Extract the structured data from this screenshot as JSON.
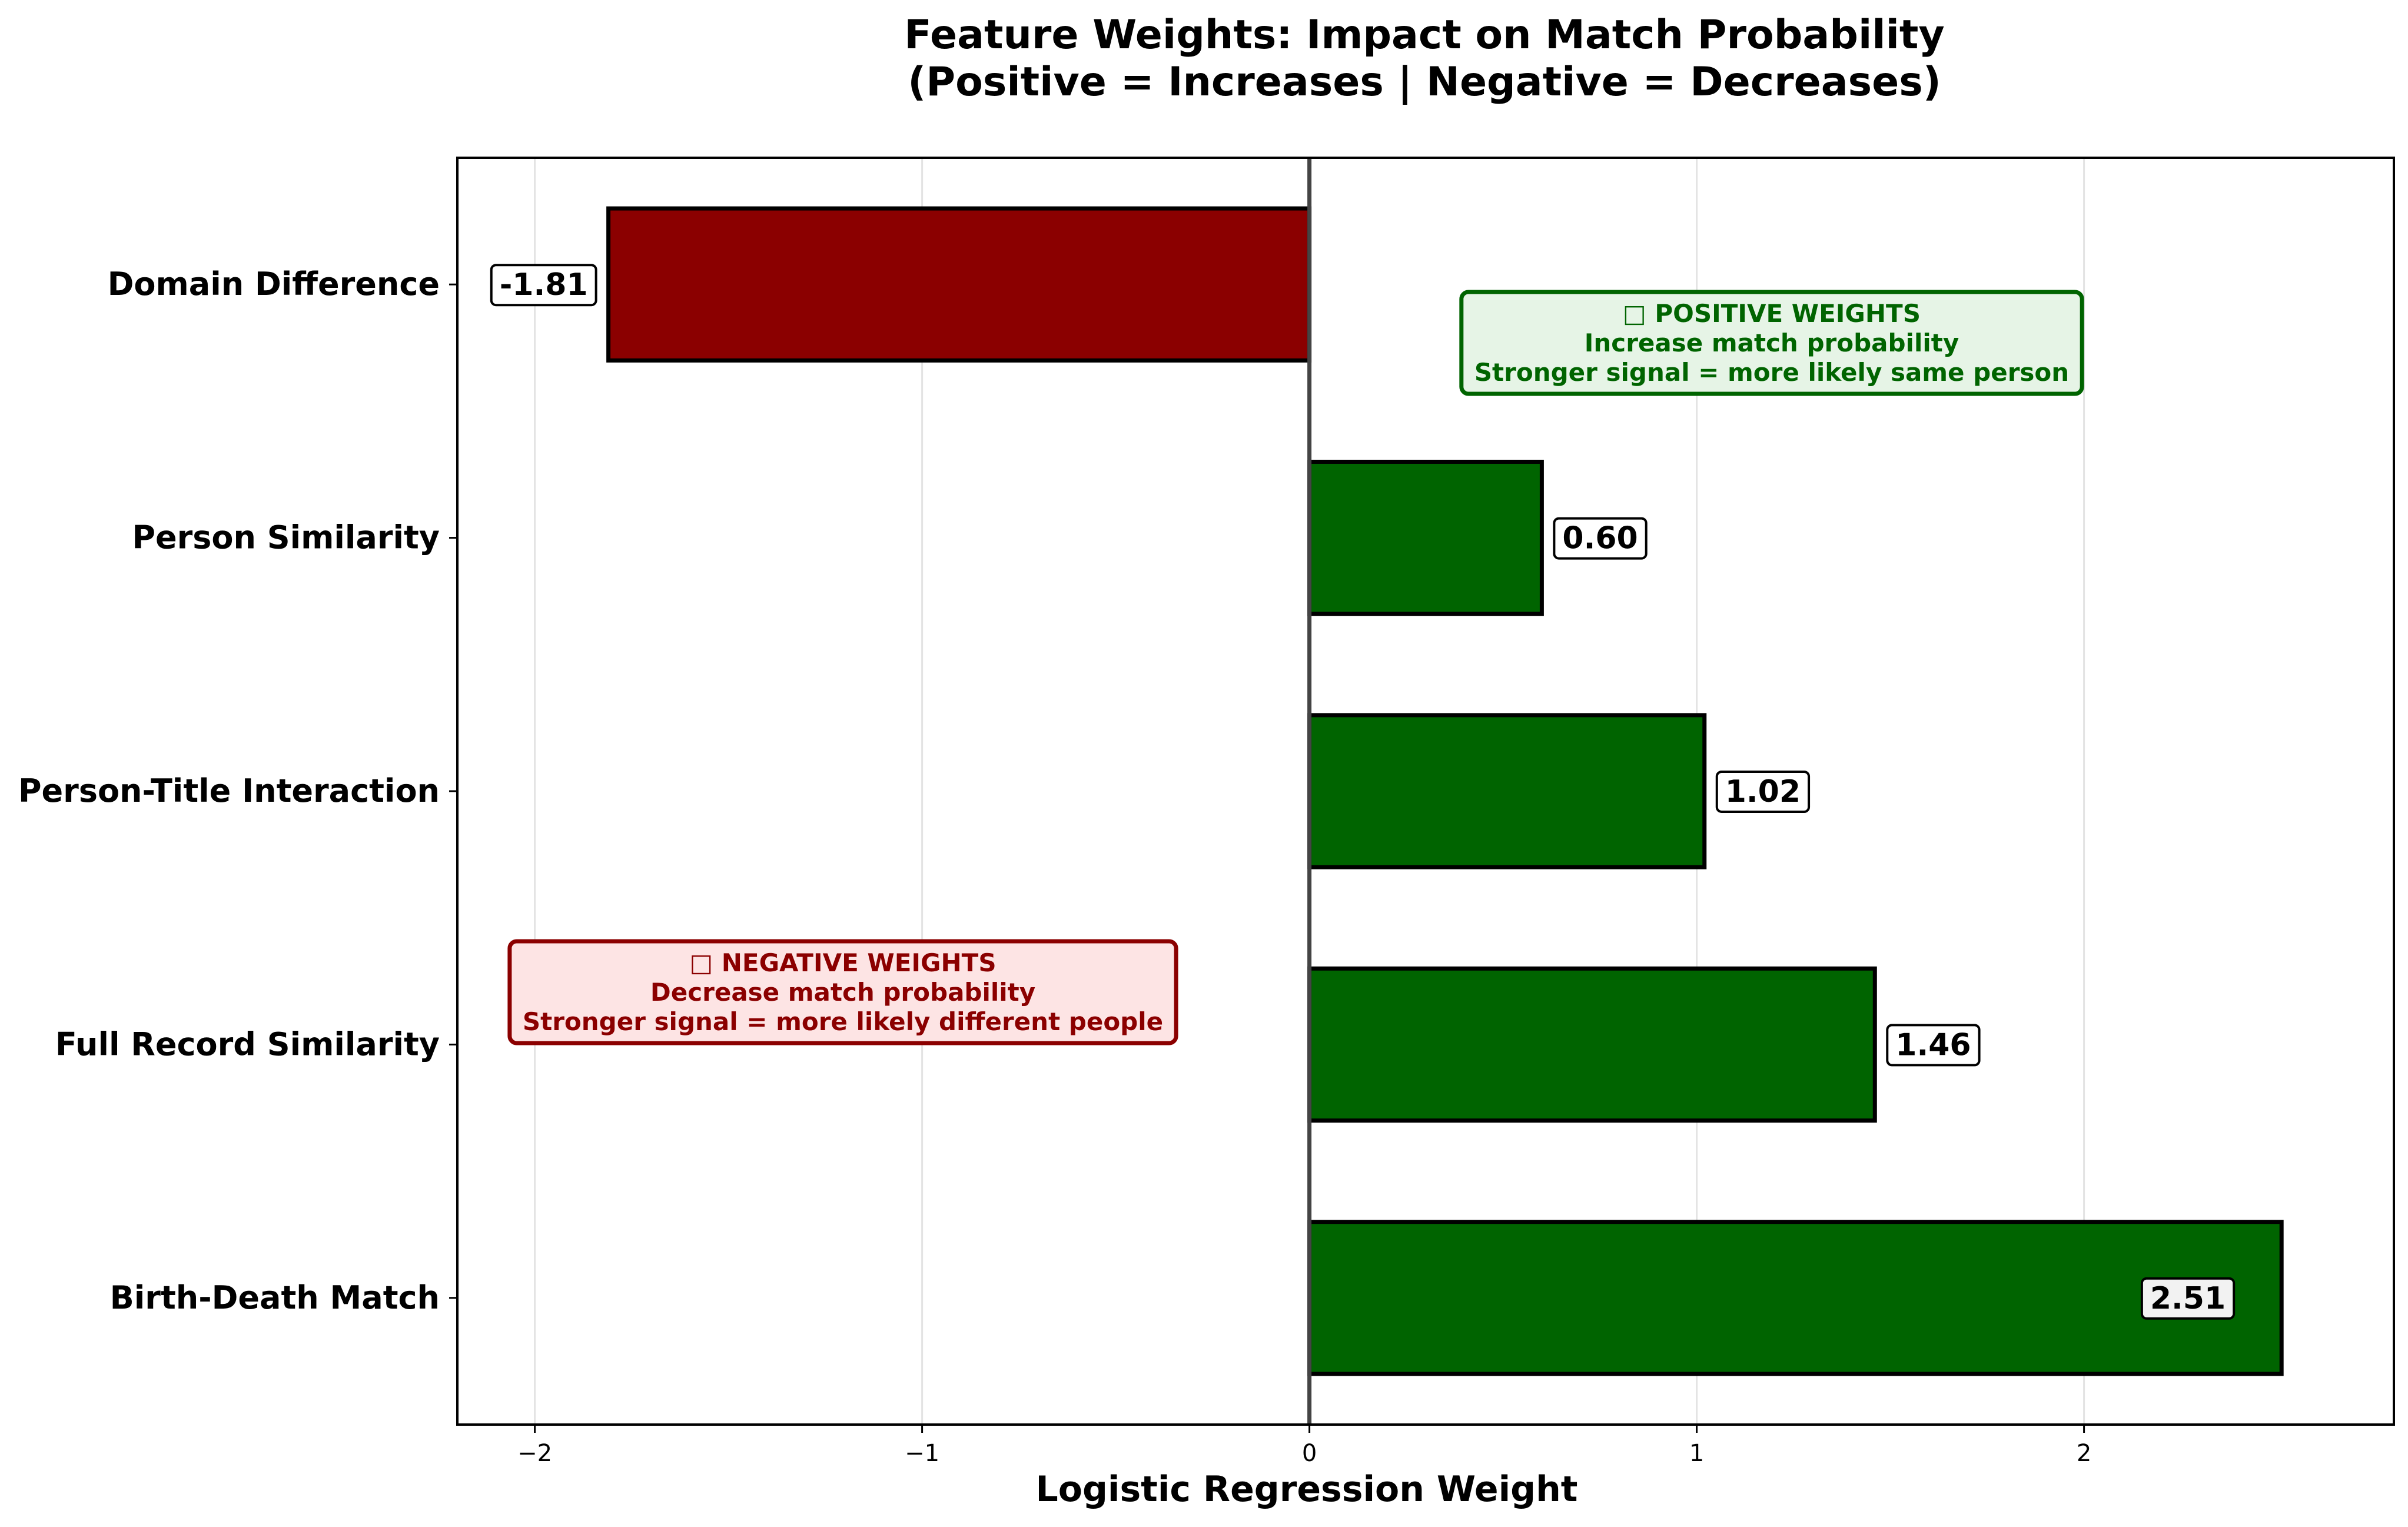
{
  "chart_data": {
    "type": "bar",
    "orientation": "horizontal",
    "title": "Feature Weights: Impact on Match Probability",
    "subtitle": "(Positive = Increases | Negative = Decreases)",
    "xlabel": "Logistic Regression Weight",
    "ylabel": "",
    "xlim": [
      -2.2,
      2.8
    ],
    "xticks": [
      -2,
      -1,
      0,
      1,
      2
    ],
    "xtick_labels": [
      "−2",
      "−1",
      "0",
      "1",
      "2"
    ],
    "grid": "vertical",
    "categories": [
      "Domain Difference",
      "Person Similarity",
      "Person-Title Interaction",
      "Full Record Similarity",
      "Birth-Death Match"
    ],
    "values": [
      -1.81,
      0.6,
      1.02,
      1.46,
      2.51
    ],
    "value_labels": [
      "-1.81",
      "0.60",
      "1.02",
      "1.46",
      "2.51"
    ],
    "colors": {
      "positive": "#006400",
      "negative": "#8b0000",
      "zero_line": "#444444"
    },
    "annotations": {
      "positive": {
        "lines": [
          "□ POSITIVE WEIGHTS",
          "Increase match probability",
          "Stronger signal = more likely same person"
        ],
        "text_color": "#006400",
        "fill": "#e6f4e6"
      },
      "negative": {
        "lines": [
          "□ NEGATIVE WEIGHTS",
          "Decrease match probability",
          "Stronger signal = more likely different people"
        ],
        "text_color": "#8b0000",
        "fill": "#fde4e4"
      }
    }
  }
}
